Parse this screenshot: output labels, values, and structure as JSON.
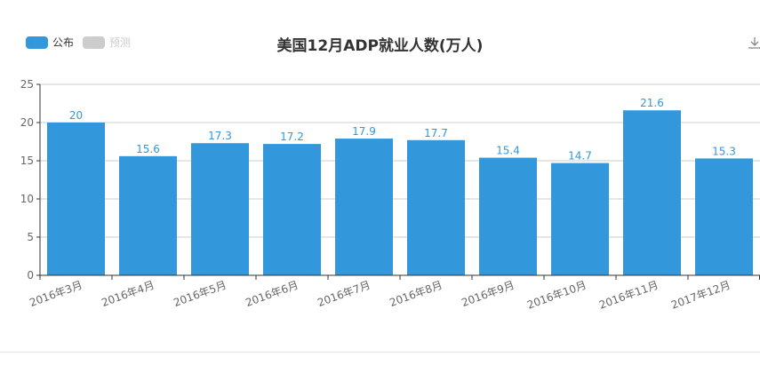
{
  "chart_data": {
    "type": "bar",
    "title": "美国12月ADP就业人数(万人)",
    "categories": [
      "2016年3月",
      "2016年4月",
      "2016年5月",
      "2016年6月",
      "2016年7月",
      "2016年8月",
      "2016年9月",
      "2016年10月",
      "2016年11月",
      "2017年12月"
    ],
    "series": [
      {
        "name": "公布",
        "values": [
          20,
          15.6,
          17.3,
          17.2,
          17.9,
          17.7,
          15.4,
          14.7,
          21.6,
          15.3
        ]
      }
    ],
    "legend": [
      {
        "name": "公布",
        "color": "#3398db",
        "active": true
      },
      {
        "name": "预测",
        "color": "#cccccc",
        "active": false
      }
    ],
    "legend_placement": "top-left",
    "ylim": [
      0,
      25
    ],
    "yticks": [
      0,
      5,
      10,
      15,
      20,
      25
    ],
    "grid": true,
    "bar_color": "#3398db",
    "label_color": "#3398db"
  },
  "toolbox": {
    "icon": "download-icon"
  }
}
